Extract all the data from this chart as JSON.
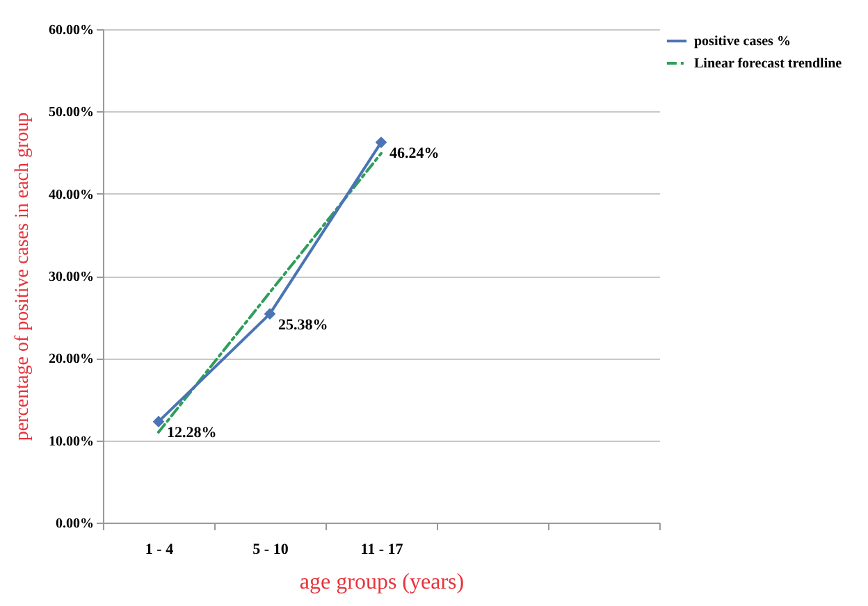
{
  "chart_data": {
    "type": "line",
    "xlabel": "age groups (years)",
    "ylabel": "percentage  of positive cases in each group",
    "categories": [
      "1 - 4",
      "5 - 10",
      "11 - 17",
      null,
      null
    ],
    "ylim": [
      0,
      60
    ],
    "yticks": [
      {
        "value": 0,
        "label": "0.00%"
      },
      {
        "value": 10,
        "label": "10.00%"
      },
      {
        "value": 20,
        "label": "20.00%"
      },
      {
        "value": 30,
        "label": "30.00%"
      },
      {
        "value": 40,
        "label": "40.00%"
      },
      {
        "value": 50,
        "label": "50.00%"
      },
      {
        "value": 60,
        "label": "60.00%"
      }
    ],
    "series": [
      {
        "name": "positive cases %",
        "color": "#4a74b4",
        "values": [
          12.28,
          25.38,
          46.24,
          null,
          null
        ],
        "marker": "diamond",
        "line_style": "solid",
        "value_labels": [
          "12.28%",
          "25.38%",
          "46.24%",
          null,
          null
        ]
      },
      {
        "name": "Linear forecast trendline",
        "type": "line",
        "color": "#2e9e5b",
        "values": [
          11.0,
          28.0,
          44.9,
          null,
          null
        ],
        "marker": "none",
        "line_style": "dashed"
      }
    ],
    "grid": "y",
    "legend": "right"
  }
}
